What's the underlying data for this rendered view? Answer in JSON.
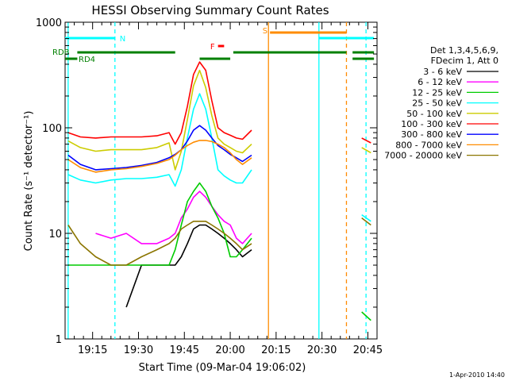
{
  "chart_data": {
    "type": "line",
    "title": "HESSI Observing Summary Count Rates",
    "xlabel": "Start Time (09-Mar-04 19:06:02)",
    "ylabel": "Count Rate (s⁻¹ detector⁻¹)",
    "y_scale": "log",
    "ylim": [
      1,
      1000
    ],
    "xlim_minutes_since_19_06": [
      0,
      102
    ],
    "x_ticks": [
      {
        "t": 9,
        "label": "19:15"
      },
      {
        "t": 24,
        "label": "19:30"
      },
      {
        "t": 39,
        "label": "19:45"
      },
      {
        "t": 54,
        "label": "20:00"
      },
      {
        "t": 69,
        "label": "20:15"
      },
      {
        "t": 84,
        "label": "20:30"
      },
      {
        "t": 99,
        "label": "20:45"
      }
    ],
    "y_ticks": [
      {
        "v": 1,
        "label": "1"
      },
      {
        "v": 10,
        "label": "10"
      },
      {
        "v": 100,
        "label": "100"
      },
      {
        "v": 1000,
        "label": "1000"
      }
    ],
    "legend_header": [
      "Det 1,3,4,5,6,9,",
      "FDecim 1, Att 0"
    ],
    "legend_position": "right",
    "x_times": [
      1,
      5,
      10,
      15,
      20,
      25,
      30,
      34,
      36,
      38,
      40,
      42,
      44,
      46,
      48,
      50,
      52,
      54,
      56,
      58,
      61
    ],
    "series": [
      {
        "name": "3 - 6 keV",
        "color": "#000000",
        "values": [
          null,
          null,
          null,
          null,
          2.0,
          5.0,
          5.0,
          5.0,
          5.0,
          6.0,
          8.0,
          11.0,
          12.0,
          12.0,
          11.0,
          10.0,
          9.0,
          8.0,
          7.0,
          6.0,
          7.0
        ]
      },
      {
        "name": "6 - 12 keV",
        "color": "#ff00ff",
        "values": [
          null,
          null,
          10.0,
          9.0,
          10.0,
          8.0,
          8.0,
          9.0,
          10.0,
          14.0,
          17.0,
          22.0,
          25.0,
          22.0,
          18.0,
          15.0,
          13.0,
          12.0,
          9.0,
          8.0,
          10.0
        ]
      },
      {
        "name": "12 - 25 keV",
        "color": "#00cc00",
        "values": [
          5.0,
          5.0,
          5.0,
          5.0,
          5.0,
          5.0,
          5.0,
          5.0,
          7.0,
          12.0,
          20.0,
          25.0,
          30.0,
          25.0,
          18.0,
          14.0,
          10.0,
          6.0,
          6.0,
          7.0,
          9.0
        ]
      },
      {
        "name": "25 - 50 keV",
        "color": "#00ffff",
        "values": [
          36.0,
          32.0,
          30.0,
          32.0,
          33.0,
          33.0,
          34.0,
          36.0,
          28.0,
          40.0,
          80.0,
          150.0,
          210.0,
          150.0,
          80.0,
          40.0,
          35.0,
          32.0,
          30.0,
          30.0,
          40.0
        ]
      },
      {
        "name": "50 - 100 keV",
        "color": "#cccc00",
        "values": [
          75.0,
          65.0,
          60.0,
          62.0,
          62.0,
          62.0,
          65.0,
          72.0,
          40.0,
          60.0,
          120.0,
          250.0,
          350.0,
          240.0,
          130.0,
          80.0,
          70.0,
          65.0,
          60.0,
          58.0,
          70.0
        ]
      },
      {
        "name": "100 - 300 keV",
        "color": "#ff0000",
        "values": [
          90.0,
          82.0,
          80.0,
          82.0,
          82.0,
          82.0,
          84.0,
          90.0,
          70.0,
          90.0,
          160.0,
          320.0,
          420.0,
          350.0,
          180.0,
          100.0,
          90.0,
          85.0,
          80.0,
          78.0,
          95.0
        ]
      },
      {
        "name": "300 - 800 keV",
        "color": "#0000ff",
        "values": [
          55.0,
          45.0,
          40.0,
          41.0,
          42.0,
          44.0,
          47.0,
          52.0,
          56.0,
          62.0,
          75.0,
          95.0,
          105.0,
          95.0,
          80.0,
          68.0,
          62.0,
          56.0,
          52.0,
          48.0,
          55.0
        ]
      },
      {
        "name": "800 - 7000 keV",
        "color": "#ff8c00",
        "values": [
          50.0,
          42.0,
          38.0,
          40.0,
          41.0,
          43.0,
          46.0,
          50.0,
          55.0,
          62.0,
          68.0,
          73.0,
          76.0,
          76.0,
          74.0,
          70.0,
          65.0,
          58.0,
          50.0,
          45.0,
          52.0
        ]
      },
      {
        "name": "7000 - 20000 keV",
        "color": "#8b7500",
        "values": [
          12.0,
          8.0,
          6.0,
          5.0,
          5.0,
          6.0,
          7.0,
          8.0,
          9.0,
          11.0,
          12.0,
          13.0,
          13.0,
          13.0,
          12.0,
          11.0,
          10.0,
          9.0,
          8.0,
          7.0,
          8.0
        ]
      }
    ],
    "after_gap": {
      "x_times": [
        97,
        100
      ],
      "values": {
        "100 - 300 keV": [
          80,
          72
        ],
        "50 - 100 keV": [
          65,
          58
        ],
        "25 - 50 keV": [
          15,
          13
        ],
        "7000 - 20000 keV": [
          14,
          12
        ],
        "12 - 25 keV": [
          1.8,
          1.5
        ]
      }
    },
    "flag_bars": [
      {
        "label": "N",
        "color": "#00ffff",
        "segments": [
          [
            0,
            16.3
          ],
          [
            83,
            101
          ]
        ]
      },
      {
        "label": "S",
        "color": "#ff8c00",
        "segments": [
          [
            67,
            92
          ]
        ]
      },
      {
        "label": "F",
        "color": "#ff0000",
        "segments": [
          [
            50,
            52
          ]
        ]
      },
      {
        "label": "RDB",
        "color": "#008000",
        "segments": [
          [
            4,
            36
          ],
          [
            55,
            92
          ],
          [
            94,
            101
          ]
        ]
      },
      {
        "label": "RD4",
        "color": "#008000",
        "segments": [
          [
            0,
            4
          ],
          [
            44,
            54
          ],
          [
            94,
            101
          ]
        ]
      }
    ],
    "vertical_markers": [
      {
        "t": 1,
        "color": "#00ffff",
        "dashed": false
      },
      {
        "t": 16.3,
        "color": "#00ffff",
        "dashed": true
      },
      {
        "t": 66.5,
        "color": "#ff8c00",
        "dashed": false
      },
      {
        "t": 83,
        "color": "#00ffff",
        "dashed": false
      },
      {
        "t": 92,
        "color": "#ff8c00",
        "dashed": true
      },
      {
        "t": 98.4,
        "color": "#00ffff",
        "dashed": true
      }
    ],
    "footer_timestamp": "1-Apr-2010 14:40"
  }
}
